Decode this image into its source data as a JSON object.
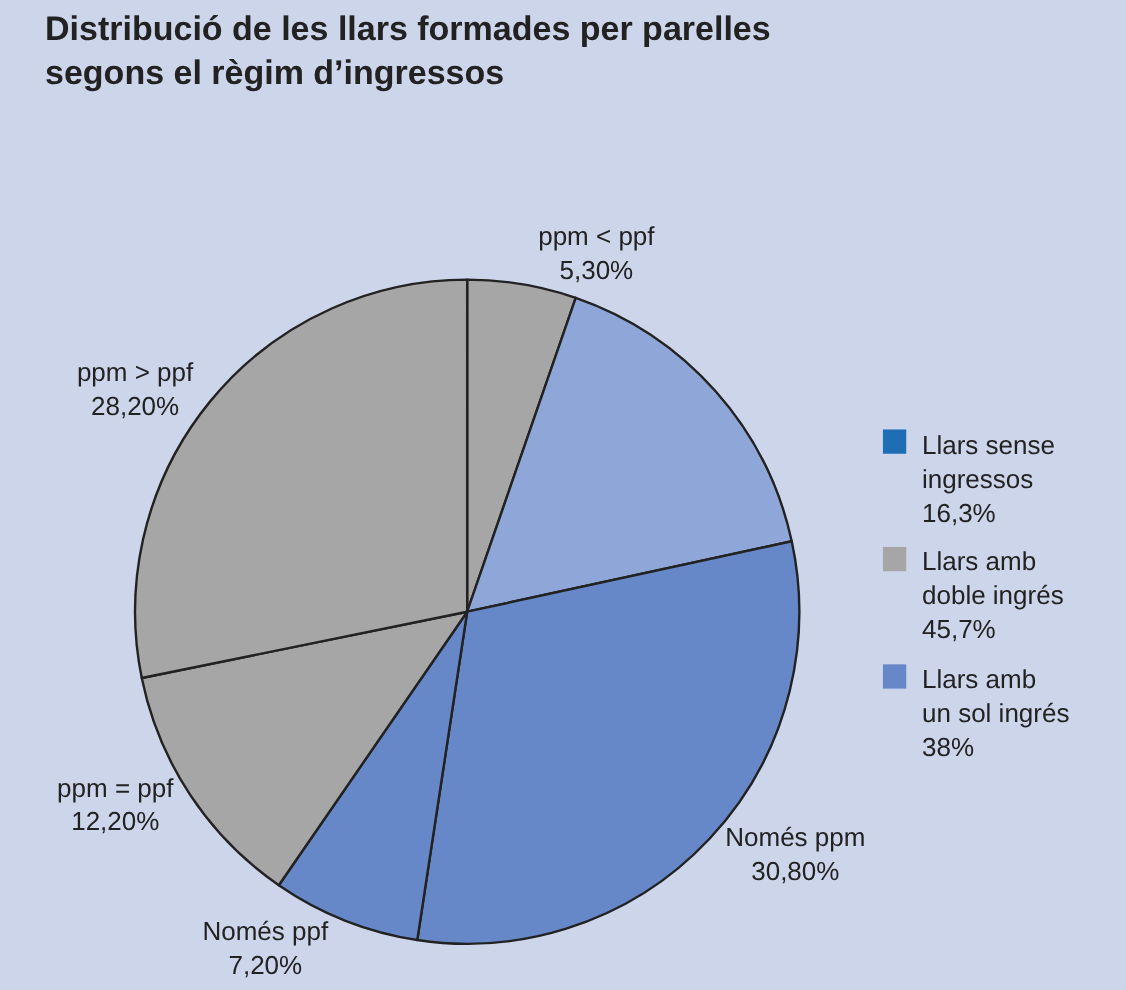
{
  "chart_data": {
    "type": "pie",
    "title": "Distribució de les llars formades per parelles\nsegons el règim d’ingressos",
    "categories": [
      "ppm < ppf",
      null,
      "Només ppm",
      "Només ppf",
      "ppm = ppf",
      "ppm > ppf"
    ],
    "values": [
      5.3,
      16.3,
      30.8,
      7.2,
      12.2,
      28.2
    ],
    "value_labels": [
      "5,30%",
      null,
      "30,80%",
      "7,20%",
      "12,20%",
      "28,20%"
    ],
    "colors": [
      "#a6a6a6",
      "#8ea7d8",
      "#6688c8",
      "#6688c8",
      "#a6a6a6",
      "#a6a6a6"
    ],
    "annotations": [
      "Llars sense\ningressos\n16,3%",
      "Llars amb\ndoble ingrés\n45,7%",
      "Llars amb\nun sol ingrés\n38%"
    ]
  }
}
